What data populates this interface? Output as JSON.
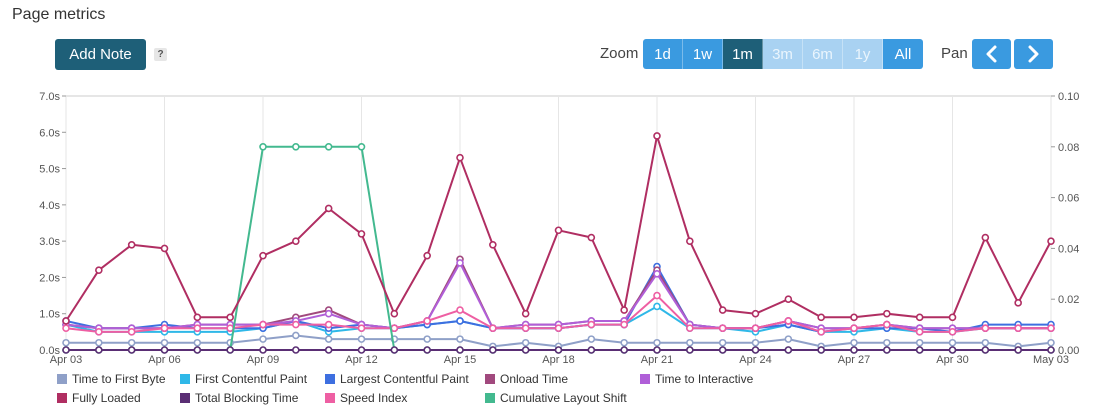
{
  "page": {
    "title": "Page metrics"
  },
  "toolbar": {
    "add_note_label": "Add Note",
    "help_label": "?"
  },
  "zoom": {
    "label": "Zoom",
    "options": [
      {
        "label": "1d",
        "state": "normal"
      },
      {
        "label": "1w",
        "state": "normal"
      },
      {
        "label": "1m",
        "state": "active"
      },
      {
        "label": "3m",
        "state": "disabled"
      },
      {
        "label": "6m",
        "state": "disabled"
      },
      {
        "label": "1y",
        "state": "disabled"
      },
      {
        "label": "All",
        "state": "normal"
      }
    ]
  },
  "pan": {
    "label": "Pan",
    "prev_icon": "chevron-left-icon",
    "next_icon": "chevron-right-icon"
  },
  "chart_data": {
    "type": "line",
    "x": [
      "Apr 03",
      "Apr 04",
      "Apr 05",
      "Apr 06",
      "Apr 07",
      "Apr 08",
      "Apr 09",
      "Apr 10",
      "Apr 11",
      "Apr 12",
      "Apr 13",
      "Apr 14",
      "Apr 15",
      "Apr 16",
      "Apr 17",
      "Apr 18",
      "Apr 19",
      "Apr 20",
      "Apr 21",
      "Apr 22",
      "Apr 23",
      "Apr 24",
      "Apr 25",
      "Apr 26",
      "Apr 27",
      "Apr 28",
      "Apr 29",
      "Apr 30",
      "May 01",
      "May 02",
      "May 03"
    ],
    "x_tick_labels": [
      "Apr 03",
      "Apr 06",
      "Apr 09",
      "Apr 12",
      "Apr 15",
      "Apr 18",
      "Apr 21",
      "Apr 24",
      "Apr 27",
      "Apr 30",
      "May 03"
    ],
    "y_left": {
      "range": [
        0,
        7
      ],
      "ticks": [
        "0.0s",
        "1.0s",
        "2.0s",
        "3.0s",
        "4.0s",
        "5.0s",
        "6.0s",
        "7.0s"
      ],
      "unit": "s"
    },
    "y_right": {
      "range": [
        0,
        0.1
      ],
      "ticks": [
        "0.00",
        "0.02",
        "0.04",
        "0.06",
        "0.08",
        "0.10"
      ]
    },
    "grid": "vertical",
    "legend_position": "bottom",
    "series": [
      {
        "name": "Time to First Byte",
        "color": "#8fa0c8",
        "axis": "left",
        "values": [
          0.2,
          0.2,
          0.2,
          0.2,
          0.2,
          0.2,
          0.3,
          0.4,
          0.3,
          0.3,
          0.3,
          0.3,
          0.3,
          0.1,
          0.2,
          0.1,
          0.3,
          0.2,
          0.2,
          0.2,
          0.2,
          0.2,
          0.3,
          0.1,
          0.2,
          0.2,
          0.2,
          0.2,
          0.2,
          0.1,
          0.2
        ]
      },
      {
        "name": "First Contentful Paint",
        "color": "#2fb8e8",
        "axis": "left",
        "values": [
          0.7,
          0.5,
          0.5,
          0.5,
          0.5,
          0.5,
          0.6,
          0.8,
          0.5,
          0.6,
          0.6,
          0.7,
          0.8,
          0.6,
          0.6,
          0.6,
          0.7,
          0.7,
          1.2,
          0.6,
          0.6,
          0.5,
          0.7,
          0.5,
          0.5,
          0.6,
          0.5,
          0.5,
          0.6,
          0.6,
          0.6
        ]
      },
      {
        "name": "Largest Contentful Paint",
        "color": "#3e6fe0",
        "axis": "left",
        "values": [
          0.8,
          0.6,
          0.6,
          0.7,
          0.6,
          0.6,
          0.6,
          0.8,
          0.6,
          0.7,
          0.6,
          0.7,
          0.8,
          0.6,
          0.6,
          0.6,
          0.7,
          0.7,
          2.3,
          0.7,
          0.6,
          0.6,
          0.7,
          0.5,
          0.6,
          0.6,
          0.6,
          0.5,
          0.7,
          0.7,
          0.7
        ]
      },
      {
        "name": "Onload Time",
        "color": "#a1497e",
        "axis": "left",
        "values": [
          0.7,
          0.6,
          0.6,
          0.6,
          0.7,
          0.7,
          0.7,
          0.9,
          1.1,
          0.7,
          0.6,
          0.8,
          2.5,
          0.6,
          0.7,
          0.7,
          0.8,
          0.8,
          2.2,
          0.7,
          0.6,
          0.6,
          0.8,
          0.6,
          0.6,
          0.7,
          0.6,
          0.6,
          0.6,
          0.6,
          0.6
        ]
      },
      {
        "name": "Time to Interactive",
        "color": "#b05fd8",
        "axis": "left",
        "values": [
          0.7,
          0.6,
          0.6,
          0.6,
          0.7,
          0.7,
          0.7,
          0.8,
          1.0,
          0.7,
          0.6,
          0.8,
          2.4,
          0.6,
          0.7,
          0.7,
          0.8,
          0.8,
          2.1,
          0.7,
          0.6,
          0.6,
          0.8,
          0.6,
          0.6,
          0.7,
          0.6,
          0.6,
          0.6,
          0.6,
          0.6
        ]
      },
      {
        "name": "Fully Loaded",
        "color": "#b02e62",
        "axis": "left",
        "values": [
          0.8,
          2.2,
          2.9,
          2.8,
          0.9,
          0.9,
          2.6,
          3.0,
          3.9,
          3.2,
          1.0,
          2.6,
          5.3,
          2.9,
          1.0,
          3.3,
          3.1,
          1.1,
          5.9,
          3.0,
          1.1,
          1.0,
          1.4,
          0.9,
          0.9,
          1.0,
          0.9,
          0.9,
          3.1,
          1.3,
          3.0
        ]
      },
      {
        "name": "Total Blocking Time",
        "color": "#5a2e74",
        "axis": "left",
        "values": [
          0,
          0,
          0,
          0,
          0,
          0,
          0,
          0,
          0,
          0,
          0,
          0,
          0,
          0,
          0,
          0,
          0,
          0,
          0,
          0,
          0,
          0,
          0,
          0,
          0,
          0,
          0,
          0,
          0,
          0,
          0
        ]
      },
      {
        "name": "Speed Index",
        "color": "#ee5fa3",
        "axis": "left",
        "values": [
          0.6,
          0.5,
          0.5,
          0.6,
          0.6,
          0.6,
          0.7,
          0.7,
          0.7,
          0.6,
          0.6,
          0.8,
          1.1,
          0.6,
          0.6,
          0.6,
          0.7,
          0.7,
          1.5,
          0.6,
          0.6,
          0.6,
          0.8,
          0.5,
          0.6,
          0.7,
          0.5,
          0.5,
          0.6,
          0.6,
          0.6
        ]
      },
      {
        "name": "Cumulative Layout Shift",
        "color": "#43b98f",
        "axis": "right",
        "values": [
          0,
          0,
          0,
          0,
          0,
          0,
          0.08,
          0.08,
          0.08,
          0.08,
          0,
          0,
          0,
          0,
          0,
          0,
          0,
          0,
          0,
          0,
          0,
          0,
          0,
          0,
          0,
          0,
          0,
          0,
          0,
          0,
          0
        ]
      }
    ]
  }
}
